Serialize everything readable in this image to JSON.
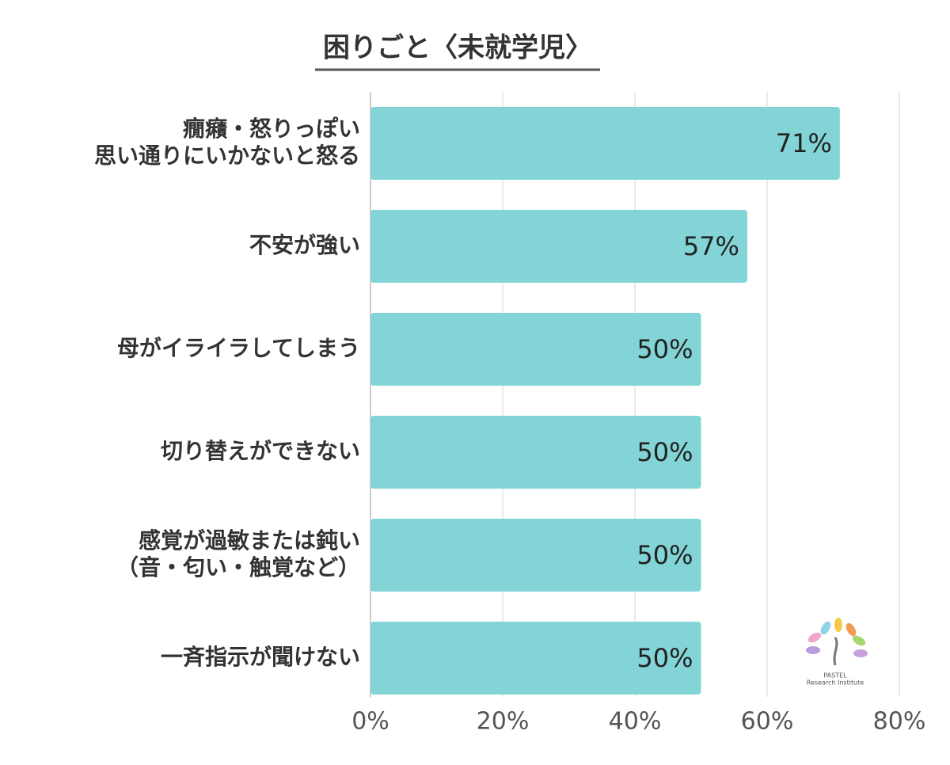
{
  "chart_data": {
    "type": "bar",
    "orientation": "horizontal",
    "title": "困りごと〈未就学児〉",
    "categories": [
      [
        "癇癪・怒りっぽい",
        "思い通りにいかないと怒る"
      ],
      [
        "不安が強い"
      ],
      [
        "母がイライラしてしまう"
      ],
      [
        "切り替えができない"
      ],
      [
        "感覚が過敏または鈍い",
        "（音・匂い・触覚など）"
      ],
      [
        "一斉指示が聞けない"
      ]
    ],
    "values": [
      71,
      57,
      50,
      50,
      50,
      50
    ],
    "value_labels": [
      "71%",
      "57%",
      "50%",
      "50%",
      "50%",
      "50%"
    ],
    "color": "#82d4d6",
    "xlim": [
      0,
      80
    ],
    "xticks": [
      {
        "value": 0,
        "label": "0%"
      },
      {
        "value": 20,
        "label": "20%"
      },
      {
        "value": 40,
        "label": "40%"
      },
      {
        "value": 60,
        "label": "60%"
      },
      {
        "value": 80,
        "label": "80%"
      }
    ],
    "grid": true,
    "logo": [
      "PASTEL",
      "Research Institute"
    ]
  }
}
